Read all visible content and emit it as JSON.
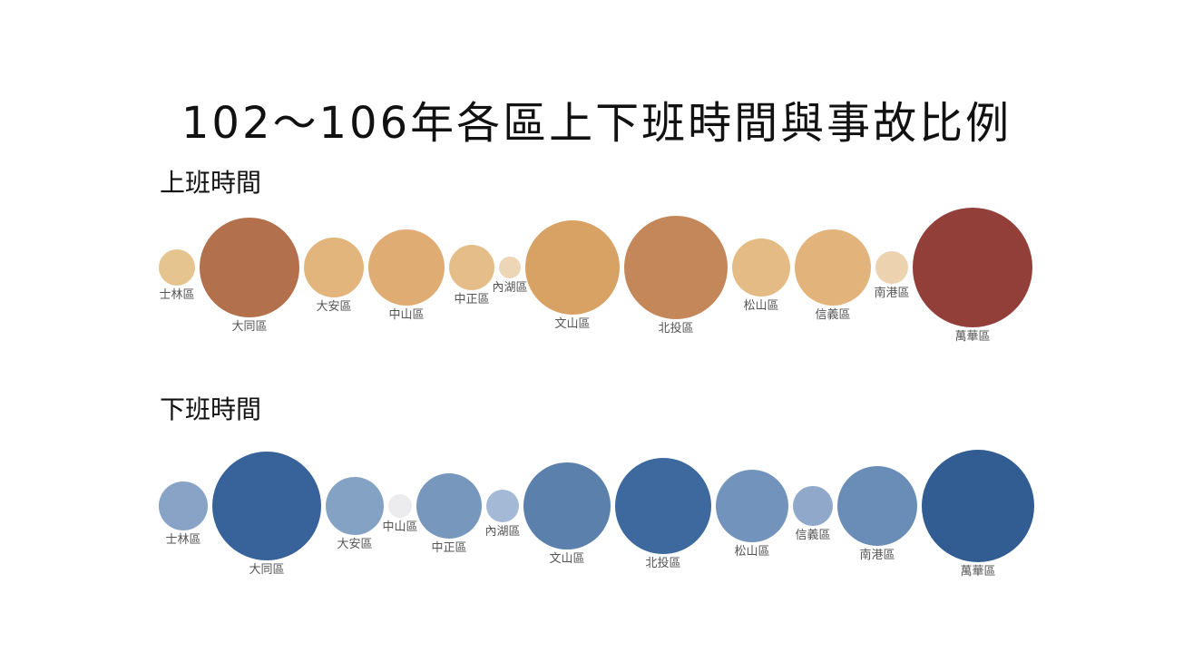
{
  "title": "102～106年各區上下班時間與事故比例",
  "chart_data": [
    {
      "type": "bubble",
      "title": "上班時間",
      "categories": [
        "士林區",
        "大同區",
        "大安區",
        "中山區",
        "中正區",
        "內湖區",
        "文山區",
        "北投區",
        "松山區",
        "信義區",
        "南港區",
        "萬華區"
      ],
      "values": [
        20,
        55,
        33,
        42,
        25,
        12,
        52,
        57,
        32,
        42,
        18,
        66
      ],
      "colors": [
        "#e6c490",
        "#b2714c",
        "#e2b57c",
        "#dfac73",
        "#e5bd88",
        "#ecd6b6",
        "#d9a265",
        "#c4875a",
        "#e4bb84",
        "#e2b47c",
        "#edd2b0",
        "#923f39"
      ]
    },
    {
      "type": "bubble",
      "title": "下班時間",
      "categories": [
        "士林區",
        "大同區",
        "大安區",
        "中山區",
        "中正區",
        "內湖區",
        "文山區",
        "北投區",
        "松山區",
        "信義區",
        "南港區",
        "萬華區"
      ],
      "values": [
        27,
        60,
        32,
        13,
        36,
        18,
        48,
        53,
        40,
        22,
        44,
        62
      ],
      "colors": [
        "#89a3c6",
        "#38629a",
        "#84a2c4",
        "#ececee",
        "#7797bd",
        "#a4b9d6",
        "#5b80ac",
        "#3d699f",
        "#7294bc",
        "#90a9cb",
        "#6a8db8",
        "#315d93"
      ]
    }
  ]
}
